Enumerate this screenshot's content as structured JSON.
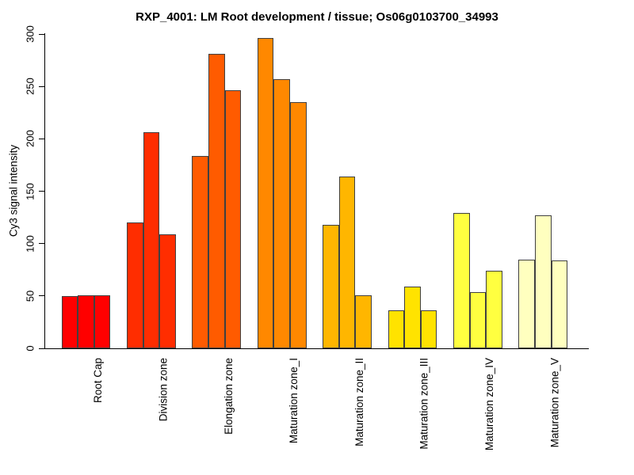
{
  "title": "RXP_4001: LM Root development / tissue; Os06g0103700_34993",
  "chart_data": {
    "type": "bar",
    "title": "RXP_4001: LM Root development / tissue; Os06g0103700_34993",
    "xlabel": "",
    "ylabel": "Cy3 signal intensity",
    "ylim": [
      0,
      300
    ],
    "yticks": [
      0,
      50,
      100,
      150,
      200,
      250,
      300
    ],
    "grid": false,
    "legend_position": "none",
    "bars_per_group": 3,
    "categories": [
      "Root Cap",
      "Division zone",
      "Elongation zone",
      "Maturation zone_I",
      "Maturation zone_II",
      "Maturation zone_III",
      "Maturation zone_IV",
      "Maturation zone_V"
    ],
    "group_colors": [
      "#FF0000",
      "#FF2D00",
      "#FF5B00",
      "#FF8800",
      "#FFB600",
      "#FFE300",
      "#FFFF40",
      "#FFFFBF"
    ],
    "bar_border_color": "#404040",
    "values": [
      [
        50,
        51,
        51
      ],
      [
        120,
        206,
        109
      ],
      [
        184,
        281,
        246
      ],
      [
        296,
        257,
        235
      ],
      [
        118,
        164,
        51
      ],
      [
        36,
        59,
        36
      ],
      [
        129,
        54,
        74
      ],
      [
        85,
        127,
        84
      ]
    ]
  }
}
